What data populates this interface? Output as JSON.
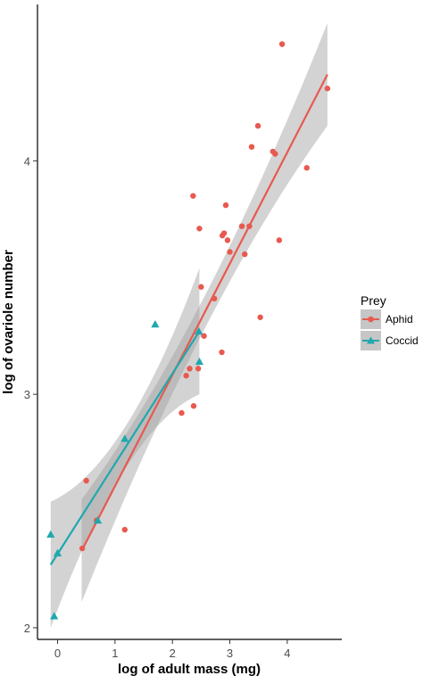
{
  "chart_data": {
    "type": "scatter",
    "xlabel": "log of adult mass (mg)",
    "ylabel": "log of ovariole number",
    "xlim": [
      -0.35,
      4.95
    ],
    "ylim": [
      1.95,
      4.67
    ],
    "x_ticks": [
      0,
      1,
      2,
      3,
      4
    ],
    "y_ticks": [
      2,
      3,
      4
    ],
    "grid": false,
    "legend": {
      "title": "Prey",
      "position": "right",
      "entries": [
        "Aphid",
        "Coccid"
      ]
    },
    "series": [
      {
        "name": "Aphid",
        "color": "#E8594F",
        "marker": "circle",
        "points": [
          [
            0.43,
            2.34
          ],
          [
            0.5,
            2.63
          ],
          [
            0.68,
            2.46
          ],
          [
            1.17,
            2.42
          ],
          [
            2.16,
            2.92
          ],
          [
            2.24,
            3.08
          ],
          [
            2.3,
            3.11
          ],
          [
            2.37,
            2.95
          ],
          [
            2.36,
            3.85
          ],
          [
            2.45,
            3.11
          ],
          [
            2.47,
            3.71
          ],
          [
            2.5,
            3.46
          ],
          [
            2.55,
            3.25
          ],
          [
            2.73,
            3.41
          ],
          [
            2.86,
            3.18
          ],
          [
            2.87,
            3.68
          ],
          [
            2.9,
            3.69
          ],
          [
            2.93,
            3.81
          ],
          [
            2.96,
            3.66
          ],
          [
            3.0,
            3.61
          ],
          [
            3.21,
            3.72
          ],
          [
            3.26,
            3.6
          ],
          [
            3.34,
            3.72
          ],
          [
            3.38,
            4.06
          ],
          [
            3.49,
            4.15
          ],
          [
            3.53,
            3.33
          ],
          [
            3.75,
            4.04
          ],
          [
            3.79,
            4.03
          ],
          [
            3.86,
            3.66
          ],
          [
            3.91,
            4.5
          ],
          [
            4.34,
            3.97
          ],
          [
            4.7,
            4.31
          ]
        ],
        "fit": {
          "x": [
            0.42,
            4.7
          ],
          "y": [
            2.33,
            4.37
          ]
        }
      },
      {
        "name": "Coccid",
        "color": "#1FA8AE",
        "marker": "triangle",
        "points": [
          [
            -0.12,
            2.4
          ],
          [
            -0.06,
            2.05
          ],
          [
            0.0,
            2.32
          ],
          [
            0.7,
            2.46
          ],
          [
            1.17,
            2.81
          ],
          [
            1.7,
            3.3
          ],
          [
            2.46,
            3.27
          ],
          [
            2.47,
            3.14
          ]
        ],
        "fit": {
          "x": [
            -0.12,
            2.47
          ],
          "y": [
            2.27,
            3.27
          ]
        }
      }
    ]
  }
}
